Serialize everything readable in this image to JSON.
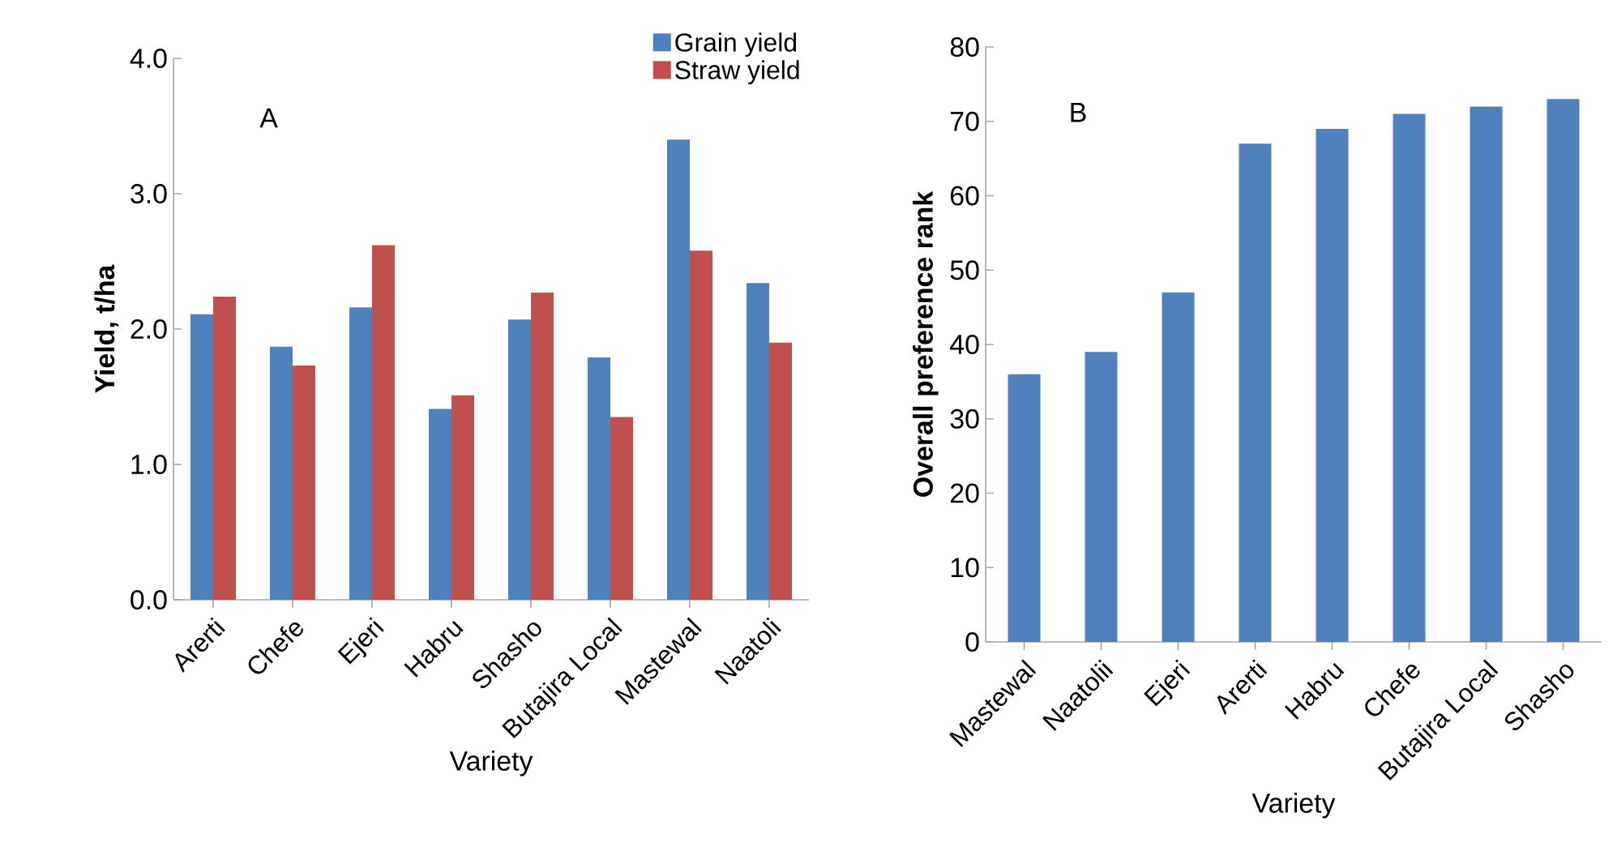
{
  "chart_data": [
    {
      "type": "bar",
      "categories": [
        "Arerti",
        "Chefe",
        "Ejeri",
        "Habru",
        "Shasho",
        "Butajira Local",
        "Mastewal",
        "Naatoli"
      ],
      "xlabel": "Variety",
      "ylabel": "Yield, t/ha",
      "annotations": [
        "A"
      ],
      "legend": "top right",
      "series": [
        {
          "name": "Grain yield",
          "color": "#4f81bd",
          "values": [
            2.11,
            1.87,
            2.16,
            1.41,
            2.07,
            1.79,
            3.4,
            2.34
          ]
        },
        {
          "name": "Straw yield",
          "color": "#c0504d",
          "values": [
            2.24,
            1.73,
            2.62,
            1.51,
            2.27,
            1.35,
            2.58,
            1.9
          ]
        }
      ],
      "ylim": [
        0,
        4
      ],
      "yticks": [
        {
          "value": 0,
          "label": "0.0"
        },
        {
          "value": 1,
          "label": "1.0"
        },
        {
          "value": 2,
          "label": "2.0"
        },
        {
          "value": 3,
          "label": "3.0"
        },
        {
          "value": 4,
          "label": "4.0"
        }
      ]
    },
    {
      "type": "bar",
      "categories": [
        "Mastewal",
        "Naatolii",
        "Ejeri",
        "Arerti",
        "Habru",
        "Chefe",
        "Butajira Local",
        "Shasho"
      ],
      "xlabel": "Variety",
      "ylabel": "Overall preference rank",
      "annotations": [
        "B"
      ],
      "color": "#4f81bd",
      "values": [
        36,
        39,
        47,
        67,
        69,
        71,
        72,
        73
      ],
      "ylim": [
        0,
        80
      ],
      "yticks": [
        0,
        10,
        20,
        30,
        40,
        50,
        60,
        70,
        80
      ]
    }
  ]
}
